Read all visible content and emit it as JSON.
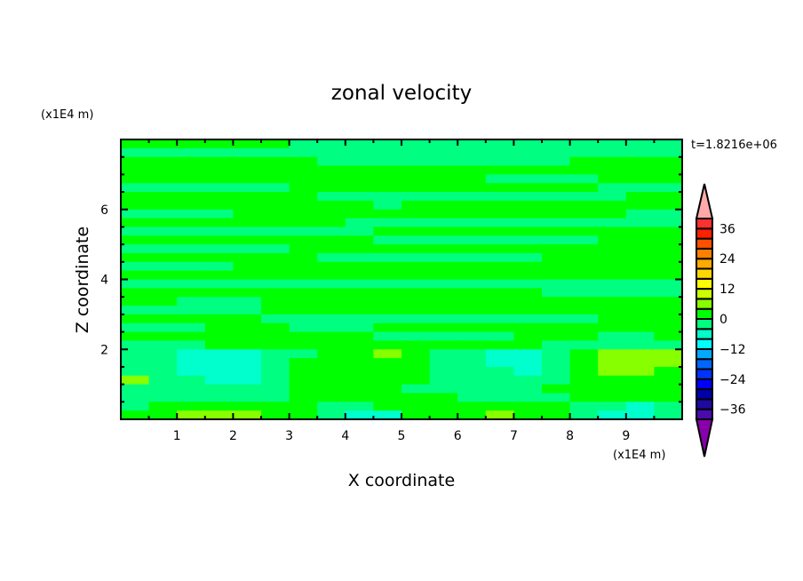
{
  "chart_data": {
    "type": "heatmap",
    "subtype": "filled-contour",
    "title": "zonal velocity",
    "xlabel": "X coordinate",
    "ylabel": "Z coordinate",
    "x_unit": "(x1E4 m)",
    "y_unit": "(x1E4 m)",
    "time_label": "t=1.8216e+06",
    "xlim": [
      0,
      10
    ],
    "ylim": [
      0,
      8
    ],
    "x_ticks": [
      1,
      2,
      3,
      4,
      5,
      6,
      7,
      8,
      9
    ],
    "y_ticks": [
      2,
      4,
      6
    ],
    "grid": false,
    "colorbar": {
      "levels": [
        -40,
        -36,
        -32,
        -28,
        -24,
        -20,
        -16,
        -12,
        -8,
        -4,
        0,
        4,
        8,
        12,
        16,
        20,
        24,
        28,
        32,
        36,
        40
      ],
      "tick_labels": [
        "36",
        "24",
        "12",
        "0",
        "-12",
        "-24",
        "-36"
      ],
      "colors": [
        "#4b0aaa",
        "#1e0aa0",
        "#0000aa",
        "#0000ff",
        "#0033ff",
        "#0066ff",
        "#00aaff",
        "#00ffff",
        "#00ffcc",
        "#00ff80",
        "#00ff00",
        "#88ff00",
        "#ccff00",
        "#ffff00",
        "#ffd700",
        "#ffaa00",
        "#ff7f00",
        "#ff5000",
        "#ff2000",
        "#ff3030"
      ],
      "under_color": "#8800aa",
      "over_color": "#ffaaaa",
      "extend": "both"
    },
    "x_centers": [
      0.25,
      0.75,
      1.25,
      1.75,
      2.25,
      2.75,
      3.25,
      3.75,
      4.25,
      4.75,
      5.25,
      5.75,
      6.25,
      6.75,
      7.25,
      7.75,
      8.25,
      8.75,
      9.25,
      9.75
    ],
    "z_centers_top_to_bottom": [
      7.875,
      7.625,
      7.375,
      7.125,
      6.875,
      6.625,
      6.375,
      6.125,
      5.875,
      5.625,
      5.375,
      5.125,
      4.875,
      4.625,
      4.375,
      4.125,
      3.875,
      3.625,
      3.375,
      3.125,
      2.875,
      2.625,
      2.375,
      2.125,
      1.875,
      1.625,
      1.375,
      1.125,
      0.875,
      0.625,
      0.375,
      0.125
    ],
    "values": [
      [
        2,
        2,
        2,
        2,
        2,
        2,
        -2,
        -2,
        -2,
        -2,
        -2,
        -2,
        -2,
        -2,
        -2,
        -2,
        -2,
        -2,
        -2,
        -2
      ],
      [
        -2,
        -2,
        -2,
        -2,
        -2,
        -2,
        -2,
        -2,
        -2,
        -2,
        -2,
        -2,
        -2,
        -2,
        -2,
        -2,
        -2,
        -2,
        -2,
        -2
      ],
      [
        2,
        2,
        2,
        2,
        2,
        2,
        2,
        -2,
        -2,
        -2,
        -2,
        -2,
        -2,
        -2,
        -2,
        -2,
        2,
        2,
        2,
        2
      ],
      [
        2,
        2,
        2,
        2,
        2,
        2,
        2,
        2,
        2,
        2,
        2,
        2,
        2,
        2,
        2,
        2,
        2,
        2,
        2,
        2
      ],
      [
        2,
        2,
        2,
        2,
        2,
        2,
        2,
        2,
        2,
        2,
        2,
        2,
        2,
        -2,
        -2,
        -2,
        -2,
        2,
        2,
        2
      ],
      [
        -2,
        -2,
        -2,
        -2,
        -2,
        -2,
        2,
        2,
        2,
        2,
        2,
        2,
        2,
        2,
        2,
        2,
        2,
        -2,
        -2,
        -2
      ],
      [
        2,
        2,
        2,
        2,
        2,
        2,
        2,
        -2,
        -2,
        -2,
        -2,
        -2,
        -2,
        -2,
        -2,
        -2,
        -2,
        -2,
        2,
        2
      ],
      [
        2,
        2,
        2,
        2,
        2,
        2,
        2,
        2,
        2,
        -2,
        2,
        2,
        2,
        2,
        2,
        2,
        2,
        2,
        2,
        2
      ],
      [
        -2,
        -2,
        -2,
        -2,
        2,
        2,
        2,
        2,
        2,
        2,
        2,
        2,
        2,
        2,
        2,
        2,
        2,
        2,
        -2,
        -2
      ],
      [
        2,
        2,
        2,
        2,
        2,
        2,
        2,
        2,
        -2,
        -2,
        -2,
        -2,
        -2,
        -2,
        -2,
        -2,
        -2,
        -2,
        -2,
        -2
      ],
      [
        -2,
        -2,
        -2,
        -2,
        -2,
        -2,
        -2,
        -2,
        -2,
        2,
        2,
        2,
        2,
        2,
        2,
        2,
        2,
        2,
        2,
        2
      ],
      [
        2,
        2,
        2,
        2,
        2,
        2,
        2,
        2,
        2,
        -2,
        -2,
        -2,
        -2,
        -2,
        -2,
        -2,
        -2,
        2,
        2,
        2
      ],
      [
        -2,
        -2,
        -2,
        -2,
        -2,
        -2,
        2,
        2,
        2,
        2,
        2,
        2,
        2,
        2,
        2,
        2,
        2,
        2,
        2,
        2
      ],
      [
        2,
        2,
        2,
        2,
        2,
        2,
        2,
        -2,
        -2,
        -2,
        -2,
        -2,
        -2,
        -2,
        -2,
        2,
        2,
        2,
        2,
        2
      ],
      [
        -2,
        -2,
        -2,
        -2,
        2,
        2,
        2,
        2,
        2,
        2,
        2,
        2,
        2,
        2,
        2,
        2,
        2,
        2,
        2,
        2
      ],
      [
        2,
        2,
        2,
        2,
        2,
        2,
        2,
        2,
        2,
        2,
        2,
        2,
        2,
        2,
        2,
        2,
        2,
        2,
        2,
        2
      ],
      [
        -2,
        -2,
        -2,
        -2,
        -2,
        -2,
        -2,
        -2,
        -2,
        -2,
        -2,
        -2,
        -2,
        -2,
        -2,
        -2,
        -2,
        -2,
        -2,
        -2
      ],
      [
        2,
        2,
        2,
        2,
        2,
        2,
        2,
        2,
        2,
        2,
        2,
        2,
        2,
        2,
        2,
        -2,
        -2,
        -2,
        -2,
        -2
      ],
      [
        2,
        2,
        -2,
        -2,
        -2,
        2,
        2,
        2,
        2,
        2,
        2,
        2,
        2,
        2,
        2,
        2,
        2,
        2,
        2,
        2
      ],
      [
        -2,
        -2,
        -2,
        -2,
        -2,
        2,
        2,
        2,
        2,
        2,
        2,
        2,
        2,
        2,
        2,
        2,
        2,
        2,
        2,
        2
      ],
      [
        2,
        2,
        2,
        2,
        2,
        -2,
        -2,
        -2,
        -2,
        -2,
        -2,
        -2,
        -2,
        -2,
        -2,
        -2,
        -2,
        2,
        2,
        2
      ],
      [
        -2,
        -2,
        -2,
        2,
        2,
        2,
        -2,
        -2,
        -2,
        2,
        2,
        2,
        2,
        2,
        2,
        2,
        2,
        2,
        2,
        2
      ],
      [
        2,
        2,
        2,
        2,
        2,
        2,
        2,
        2,
        2,
        -2,
        -2,
        -2,
        -2,
        -2,
        2,
        2,
        2,
        -2,
        -2,
        2
      ],
      [
        -2,
        -2,
        -2,
        2,
        2,
        2,
        2,
        2,
        2,
        2,
        2,
        2,
        2,
        2,
        2,
        -2,
        -2,
        -2,
        -2,
        -2
      ],
      [
        -2,
        -2,
        -6,
        -6,
        -6,
        -2,
        -2,
        2,
        2,
        6,
        2,
        -2,
        -2,
        -6,
        -6,
        -2,
        2,
        6,
        6,
        6
      ],
      [
        -2,
        -2,
        -6,
        -6,
        -6,
        -2,
        2,
        2,
        2,
        2,
        2,
        -2,
        -2,
        -6,
        -6,
        -2,
        2,
        6,
        6,
        6
      ],
      [
        -2,
        -2,
        -6,
        -6,
        -6,
        -2,
        2,
        2,
        2,
        2,
        2,
        -2,
        -2,
        -2,
        -6,
        -2,
        2,
        6,
        6,
        2
      ],
      [
        6,
        -2,
        -2,
        -6,
        -6,
        -2,
        2,
        2,
        2,
        2,
        2,
        -2,
        -2,
        -2,
        -2,
        -2,
        2,
        2,
        2,
        2
      ],
      [
        -2,
        -2,
        -2,
        -2,
        -2,
        -2,
        2,
        2,
        2,
        2,
        -2,
        -2,
        -2,
        -2,
        -2,
        2,
        2,
        2,
        2,
        2
      ],
      [
        -2,
        -2,
        -2,
        -2,
        -2,
        -2,
        2,
        2,
        2,
        2,
        2,
        2,
        -2,
        -2,
        -2,
        -2,
        2,
        2,
        2,
        2
      ],
      [
        -2,
        2,
        2,
        2,
        2,
        2,
        2,
        -2,
        -2,
        2,
        2,
        2,
        2,
        2,
        2,
        2,
        -2,
        -2,
        -6,
        -2
      ],
      [
        2,
        2,
        6,
        6,
        6,
        2,
        2,
        -2,
        -6,
        -6,
        2,
        2,
        2,
        6,
        2,
        2,
        -2,
        -6,
        -6,
        -2
      ]
    ]
  }
}
